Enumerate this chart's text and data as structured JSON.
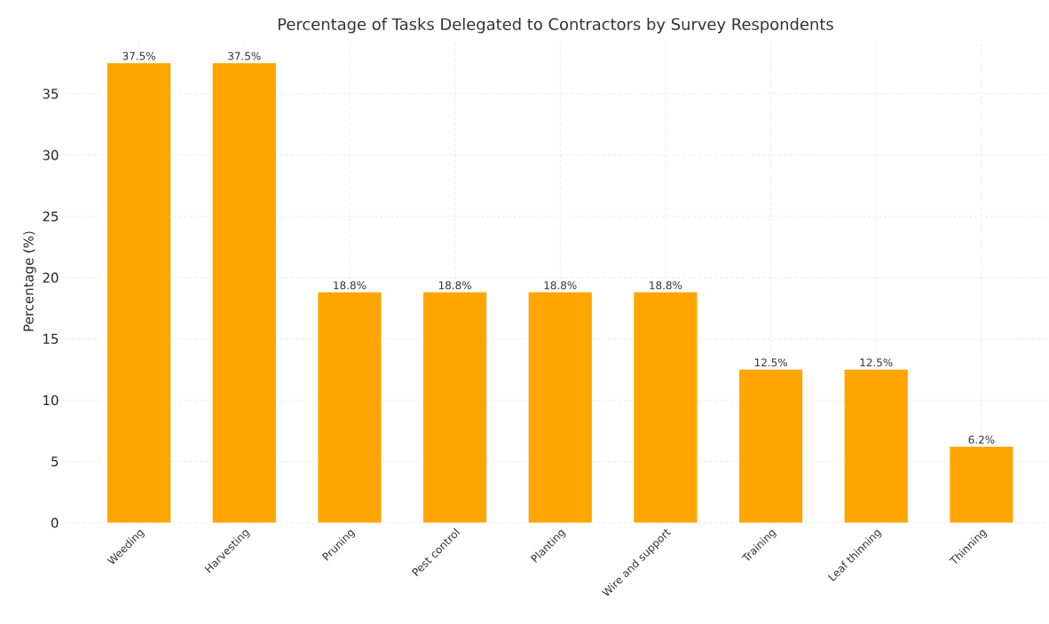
{
  "chart_data": {
    "type": "bar",
    "title": "Percentage of Tasks Delegated to Contractors by Survey Respondents",
    "ylabel": "Percentage (%)",
    "categories": [
      "Weeding",
      "Harvesting",
      "Pruning",
      "Pest control",
      "Planting",
      "Wire and support",
      "Training",
      "Leaf thinning",
      "Thinning"
    ],
    "values": [
      37.5,
      37.5,
      18.8,
      18.8,
      18.8,
      18.8,
      12.5,
      12.5,
      6.2
    ],
    "value_labels": [
      "37.5%",
      "37.5%",
      "18.8%",
      "18.8%",
      "18.8%",
      "18.8%",
      "12.5%",
      "12.5%",
      "6.2%"
    ],
    "color": "#ffa500",
    "ylim": [
      0,
      39.4
    ],
    "yticks": [
      0,
      5,
      10,
      15,
      20,
      25,
      30,
      35
    ],
    "grid": true
  }
}
